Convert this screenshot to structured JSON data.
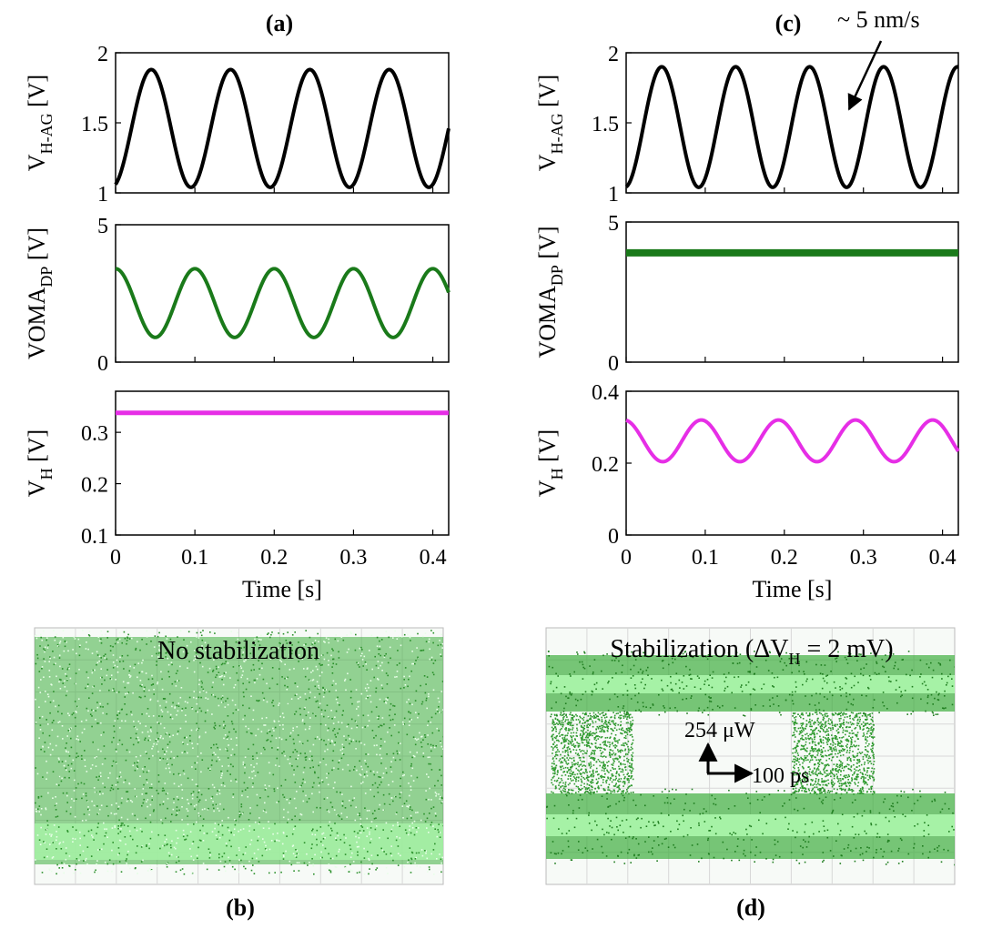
{
  "panel_labels": {
    "a": "(a)",
    "b": "(b)",
    "c": "(c)",
    "d": "(d)"
  },
  "annotations": {
    "rate": "~ 5 nm/s",
    "eye_b_title": "No stabilization",
    "eye_d_title_prefix": "Stabilization (ΔV",
    "eye_d_title_sub": "H",
    "eye_d_title_suffix": " = 2 mV)",
    "power_scale": "254 μW",
    "time_scale": "100 ps"
  },
  "colors": {
    "v_hag": "#000000",
    "voma": "#1a7a1a",
    "v_h": "#e62ee6",
    "eye_green": "#3fae3f",
    "eye_light": "#a6f2a6"
  },
  "chart_data": [
    {
      "id": "a-top",
      "type": "line",
      "ylabel_main": "V",
      "ylabel_sub": "H-AG",
      "ylabel_unit": " [V]",
      "xlim": [
        0,
        0.42
      ],
      "ylim": [
        1,
        2
      ],
      "yticks": [
        "1",
        "1.5",
        "2"
      ],
      "series": [
        {
          "kind": "sine",
          "mean": 1.46,
          "amp": 0.42,
          "period": 0.1,
          "peak_at": 0.045
        }
      ]
    },
    {
      "id": "a-mid",
      "type": "line",
      "ylabel_main": "VOMA",
      "ylabel_sub": "DP",
      "ylabel_unit": " [V]",
      "xlim": [
        0,
        0.42
      ],
      "ylim": [
        0,
        5
      ],
      "yticks": [
        "0",
        "5"
      ],
      "series": [
        {
          "kind": "sine",
          "mean": 2.15,
          "amp": 1.25,
          "period": 0.1,
          "peak_at": 0.0
        }
      ]
    },
    {
      "id": "a-bot",
      "type": "line",
      "ylabel_main": "V",
      "ylabel_sub": "H",
      "ylabel_unit": " [V]",
      "xlabel": "Time [s]",
      "xlim": [
        0,
        0.42
      ],
      "ylim": [
        0.1,
        0.38
      ],
      "xticks": [
        "0",
        "0.1",
        "0.2",
        "0.3",
        "0.4"
      ],
      "yticks": [
        "0.1",
        "0.2",
        "0.3"
      ],
      "series": [
        {
          "kind": "const",
          "value": 0.338
        }
      ]
    },
    {
      "id": "c-top",
      "type": "line",
      "ylabel_main": "V",
      "ylabel_sub": "H-AG",
      "ylabel_unit": " [V]",
      "xlim": [
        0,
        0.42
      ],
      "ylim": [
        1,
        2
      ],
      "yticks": [
        "1",
        "1.5",
        "2"
      ],
      "series": [
        {
          "kind": "sine",
          "mean": 1.47,
          "amp": 0.43,
          "period": 0.0935,
          "peak_at": 0.045
        }
      ]
    },
    {
      "id": "c-mid",
      "type": "line",
      "ylabel_main": "VOMA",
      "ylabel_sub": "DP",
      "ylabel_unit": " [V]",
      "xlim": [
        0,
        0.42
      ],
      "ylim": [
        0,
        5
      ],
      "yticks": [
        "0",
        "5"
      ],
      "series": [
        {
          "kind": "const",
          "value": 3.9
        }
      ]
    },
    {
      "id": "c-bot",
      "type": "line",
      "ylabel_main": "V",
      "ylabel_sub": "H",
      "ylabel_unit": " [V]",
      "xlabel": "Time [s]",
      "xlim": [
        0,
        0.42
      ],
      "ylim": [
        0,
        0.4
      ],
      "xticks": [
        "0",
        "0.1",
        "0.2",
        "0.3",
        "0.4"
      ],
      "yticks": [
        "0",
        "0.2",
        "0.4"
      ],
      "series": [
        {
          "kind": "sine",
          "mean": 0.262,
          "amp": 0.058,
          "period": 0.0975,
          "peak_at": 0.095
        }
      ]
    }
  ]
}
